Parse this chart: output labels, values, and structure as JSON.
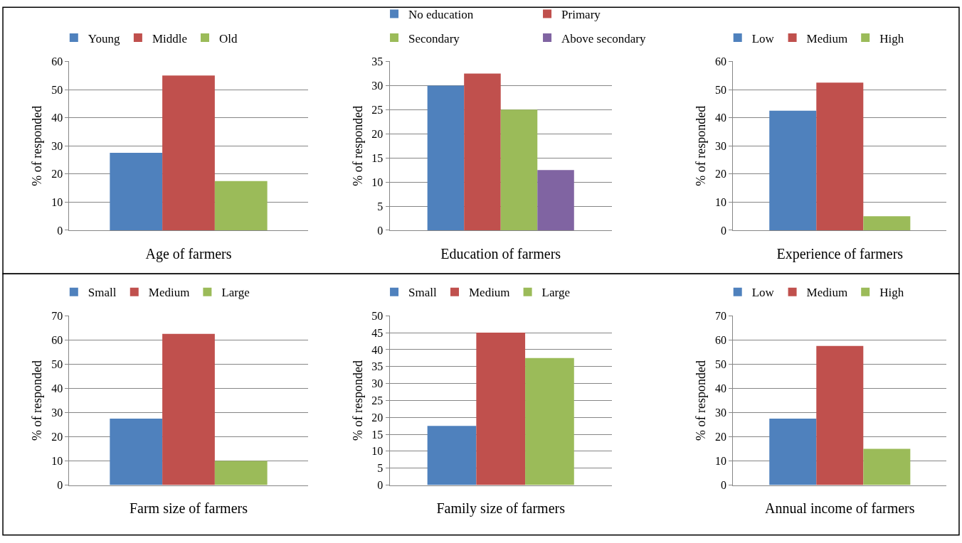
{
  "chart_data": [
    {
      "type": "bar",
      "categories": [
        null
      ],
      "xlabel": "Age of farmers",
      "ylabel": "% of responded",
      "ylim": [
        0,
        60
      ],
      "yticks": [
        0,
        10,
        20,
        30,
        40,
        50,
        60
      ],
      "grid": "y",
      "legend": "top",
      "series": [
        {
          "name": "Young",
          "color": "#4f81bd",
          "values": [
            27.5
          ]
        },
        {
          "name": "Middle",
          "color": "#c0504d",
          "values": [
            55
          ]
        },
        {
          "name": "Old",
          "color": "#9bbb59",
          "values": [
            17.5
          ]
        }
      ]
    },
    {
      "type": "bar",
      "categories": [
        null
      ],
      "xlabel": "Education of farmers",
      "ylabel": "% of responded",
      "ylim": [
        0,
        35
      ],
      "yticks": [
        0,
        5,
        10,
        15,
        20,
        25,
        30,
        35
      ],
      "grid": "y",
      "legend": "top",
      "series": [
        {
          "name": "No education",
          "color": "#4f81bd",
          "values": [
            30
          ]
        },
        {
          "name": "Primary",
          "color": "#c0504d",
          "values": [
            32.5
          ]
        },
        {
          "name": "Secondary",
          "color": "#9bbb59",
          "values": [
            25
          ]
        },
        {
          "name": "Above secondary",
          "color": "#8064a2",
          "values": [
            12.5
          ]
        }
      ]
    },
    {
      "type": "bar",
      "categories": [
        null
      ],
      "xlabel": "Experience of farmers",
      "ylabel": "% of responded",
      "ylim": [
        0,
        60
      ],
      "yticks": [
        0,
        10,
        20,
        30,
        40,
        50,
        60
      ],
      "grid": "y",
      "legend": "top",
      "series": [
        {
          "name": "Low",
          "color": "#4f81bd",
          "values": [
            42.5
          ]
        },
        {
          "name": "Medium",
          "color": "#c0504d",
          "values": [
            52.5
          ]
        },
        {
          "name": "High",
          "color": "#9bbb59",
          "values": [
            5
          ]
        }
      ]
    },
    {
      "type": "bar",
      "categories": [
        null
      ],
      "xlabel": "Farm size of farmers",
      "ylabel": "% of responded",
      "ylim": [
        0,
        70
      ],
      "yticks": [
        0,
        10,
        20,
        30,
        40,
        50,
        60,
        70
      ],
      "grid": "y",
      "legend": "top",
      "series": [
        {
          "name": "Small",
          "color": "#4f81bd",
          "values": [
            27.5
          ]
        },
        {
          "name": "Medium",
          "color": "#c0504d",
          "values": [
            62.5
          ]
        },
        {
          "name": "Large",
          "color": "#9bbb59",
          "values": [
            10
          ]
        }
      ]
    },
    {
      "type": "bar",
      "categories": [
        null
      ],
      "xlabel": "Family size of farmers",
      "ylabel": "% of responded",
      "ylim": [
        0,
        50
      ],
      "yticks": [
        0,
        5,
        10,
        15,
        20,
        25,
        30,
        35,
        40,
        45,
        50
      ],
      "grid": "y",
      "legend": "top",
      "series": [
        {
          "name": "Small",
          "color": "#4f81bd",
          "values": [
            17.5
          ]
        },
        {
          "name": "Medium",
          "color": "#c0504d",
          "values": [
            45
          ]
        },
        {
          "name": "Large",
          "color": "#9bbb59",
          "values": [
            37.5
          ]
        }
      ]
    },
    {
      "type": "bar",
      "categories": [
        null
      ],
      "xlabel": "Annual income of farmers",
      "ylabel": "% of responded",
      "ylim": [
        0,
        70
      ],
      "yticks": [
        0,
        10,
        20,
        30,
        40,
        50,
        60,
        70
      ],
      "grid": "y",
      "legend": "top",
      "series": [
        {
          "name": "Low",
          "color": "#4f81bd",
          "values": [
            27.5
          ]
        },
        {
          "name": "Medium",
          "color": "#c0504d",
          "values": [
            57.5
          ]
        },
        {
          "name": "High",
          "color": "#9bbb59",
          "values": [
            15
          ]
        }
      ]
    }
  ]
}
